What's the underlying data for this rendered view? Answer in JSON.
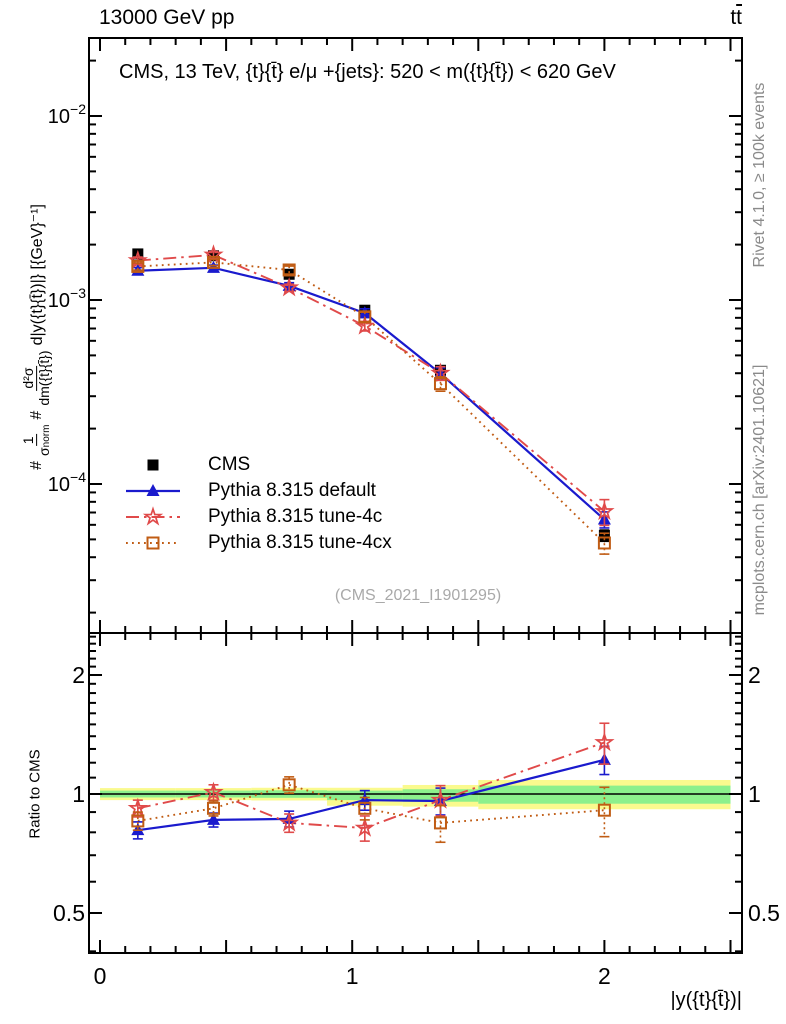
{
  "header": {
    "left": "13000 GeV pp",
    "right_t": "t",
    "right_tbar": "t"
  },
  "panel_title": "CMS, 13 TeV, {t}{t̄} e/μ +{jets}: 520 < m({t}{t̄}) < 620 GeV",
  "watermark": "(CMS_2021_I1901295)",
  "side_notes": {
    "top": "Rivet 4.1.0, ≥ 100k events",
    "bottom": "mcplots.cern.ch [arXiv:2401.10621]"
  },
  "ylabel": {
    "hash1": "#",
    "f1_num": "1",
    "f1_den_base": "σ",
    "f1_den_sub": "norm",
    "hash2": "#",
    "f2_num": "d²σ",
    "f2_den": "dm({t}{t̄})",
    "tail": "d|y({t}{t̄})|} [{GeV}⁻¹]"
  },
  "ratio_ylabel": "Ratio to CMS",
  "xlabel": "|y({t}{t̄})|",
  "legend": [
    {
      "label": "CMS"
    },
    {
      "label": "Pythia 8.315 default"
    },
    {
      "label": "Pythia 8.315 tune-4c"
    },
    {
      "label": "Pythia 8.315 tune-4cx"
    }
  ],
  "chart_data": {
    "type": "line",
    "title": "CMS, 13 TeV, ttbar e/mu +jets: 520 < m(ttbar) < 620 GeV",
    "xlabel": "|y(ttbar)|",
    "ylabel": "1/sigma_norm d2sigma/dm(ttbar) d|y(ttbar)| [GeV^-1]",
    "x_bin_edges": [
      0,
      0.3,
      0.6,
      0.9,
      1.2,
      1.5,
      2.5
    ],
    "x_centers": [
      0.15,
      0.45,
      0.75,
      1.05,
      1.35,
      2.0
    ],
    "xlim": [
      -0.044,
      2.545
    ],
    "main_ylog": true,
    "main_ylim": [
      1.55e-05,
      0.0265
    ],
    "ratio_ylog": true,
    "ratio_ylim": [
      0.396,
      2.55
    ],
    "xticks": {
      "labeled": [
        0,
        1,
        2
      ],
      "minor_step": 0.1,
      "major_step": 0.5
    },
    "main_yticks": [
      {
        "value": 0.01,
        "base": "10",
        "exp": "−2"
      },
      {
        "value": 0.001,
        "base": "10",
        "exp": "−3"
      },
      {
        "value": 0.0001,
        "base": "10",
        "exp": "−4"
      }
    ],
    "ratio_yticks": [
      {
        "value": 2,
        "label": "2"
      },
      {
        "value": 1,
        "label": "1"
      },
      {
        "value": 0.5,
        "label": "0.5"
      }
    ],
    "cms": {
      "label": "CMS",
      "color": "#000000",
      "marker": "square",
      "values": [
        0.00178,
        0.00174,
        0.00138,
        0.00088,
        0.000415,
        5.25e-05
      ],
      "rel_err": [
        0.035,
        0.035,
        0.035,
        0.04,
        0.05,
        0.07
      ]
    },
    "series": [
      {
        "label": "Pythia 8.315 default",
        "color": "#1a1acd",
        "marker": "triangle",
        "line": "solid",
        "width": 2.2,
        "values": [
          0.001442,
          0.001496,
          0.001194,
          0.000849,
          0.000398,
          6.41e-05
        ],
        "ratio": [
          0.81,
          0.86,
          0.865,
          0.965,
          0.96,
          1.22
        ],
        "ratio_err": [
          0.04,
          0.035,
          0.04,
          0.055,
          0.075,
          0.1
        ]
      },
      {
        "label": "Pythia 8.315 tune-4c",
        "color": "#e04a4a",
        "marker": "star",
        "line": "dashdot",
        "width": 1.9,
        "values": [
          0.001638,
          0.001757,
          0.001166,
          0.000722,
          0.0004,
          7.09e-05
        ],
        "ratio": [
          0.92,
          1.01,
          0.845,
          0.82,
          0.965,
          1.35
        ],
        "ratio_err": [
          0.045,
          0.045,
          0.045,
          0.06,
          0.085,
          0.16
        ]
      },
      {
        "label": "Pythia 8.315 tune-4cx",
        "color": "#c05c14",
        "marker": "osquare",
        "line": "dot",
        "width": 1.9,
        "values": [
          0.001522,
          0.001601,
          0.001456,
          0.00081,
          0.000351,
          4.78e-05
        ],
        "ratio": [
          0.855,
          0.92,
          1.055,
          0.92,
          0.845,
          0.91
        ],
        "ratio_err": [
          0.045,
          0.04,
          0.05,
          0.06,
          0.09,
          0.13
        ]
      }
    ],
    "bands": {
      "yellow": {
        "color": "#fafa8e",
        "ranges": [
          [
            0.965,
            1.035
          ],
          [
            0.965,
            1.035
          ],
          [
            0.963,
            1.037
          ],
          [
            0.934,
            1.037
          ],
          [
            0.929,
            1.054
          ],
          [
            0.915,
            1.085
          ]
        ]
      },
      "green": {
        "color": "#8cf08c",
        "ranges": [
          [
            0.98,
            1.02
          ],
          [
            0.98,
            1.02
          ],
          [
            0.978,
            1.022
          ],
          [
            0.965,
            1.02
          ],
          [
            0.956,
            1.028
          ],
          [
            0.945,
            1.05
          ]
        ]
      }
    },
    "ref_line": 1
  }
}
